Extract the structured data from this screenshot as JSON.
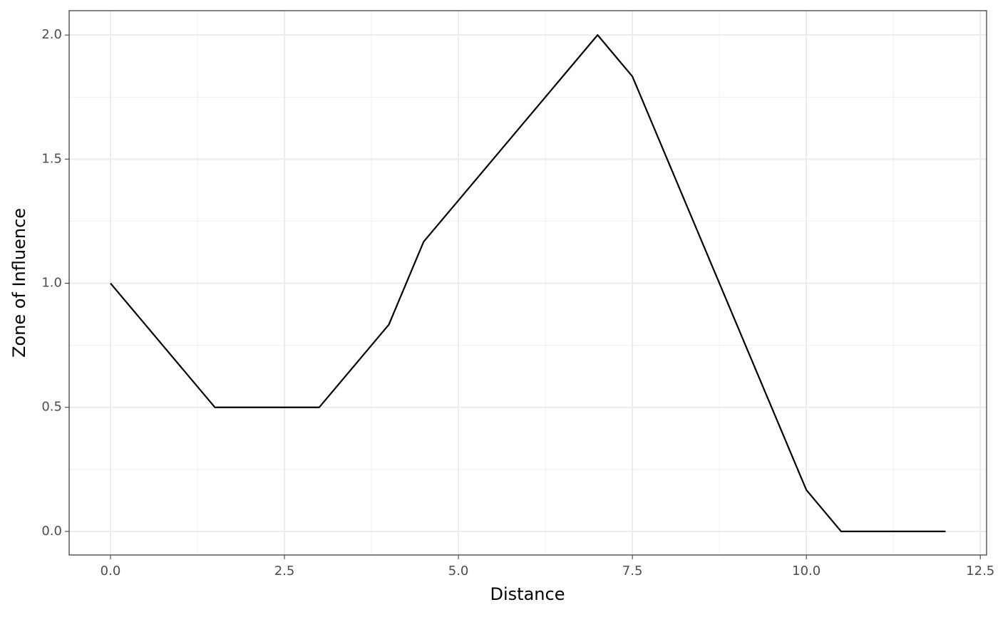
{
  "chart_data": {
    "type": "line",
    "x_label": "Distance",
    "y_label": "Zone of Influence",
    "x": [
      0,
      1.5,
      3,
      4,
      4.5,
      7,
      7.5,
      10,
      10.5,
      12
    ],
    "values": [
      1,
      0.5,
      0.5,
      0.833,
      1.167,
      2,
      1.833,
      0.167,
      0,
      0
    ],
    "color": "#000000",
    "xlim": [
      -0.594,
      12.59
    ],
    "ylim": [
      -0.095,
      2.098
    ],
    "xticks": [
      {
        "value": 0,
        "label": "0.0"
      },
      {
        "value": 2.5,
        "label": "2.5"
      },
      {
        "value": 5,
        "label": "5.0"
      },
      {
        "value": 7.5,
        "label": "7.5"
      },
      {
        "value": 10,
        "label": "10.0"
      },
      {
        "value": 12.5,
        "label": "12.5"
      }
    ],
    "yticks": [
      {
        "value": 0,
        "label": "0.0"
      },
      {
        "value": 0.5,
        "label": "0.5"
      },
      {
        "value": 1,
        "label": "1.0"
      },
      {
        "value": 1.5,
        "label": "1.5"
      },
      {
        "value": 2,
        "label": "2.0"
      }
    ],
    "x_minor_ticks": [
      1.25,
      3.75,
      6.25,
      8.75,
      11.25
    ],
    "y_minor_ticks": [
      0.25,
      0.75,
      1.25,
      1.75
    ],
    "grid": true
  }
}
